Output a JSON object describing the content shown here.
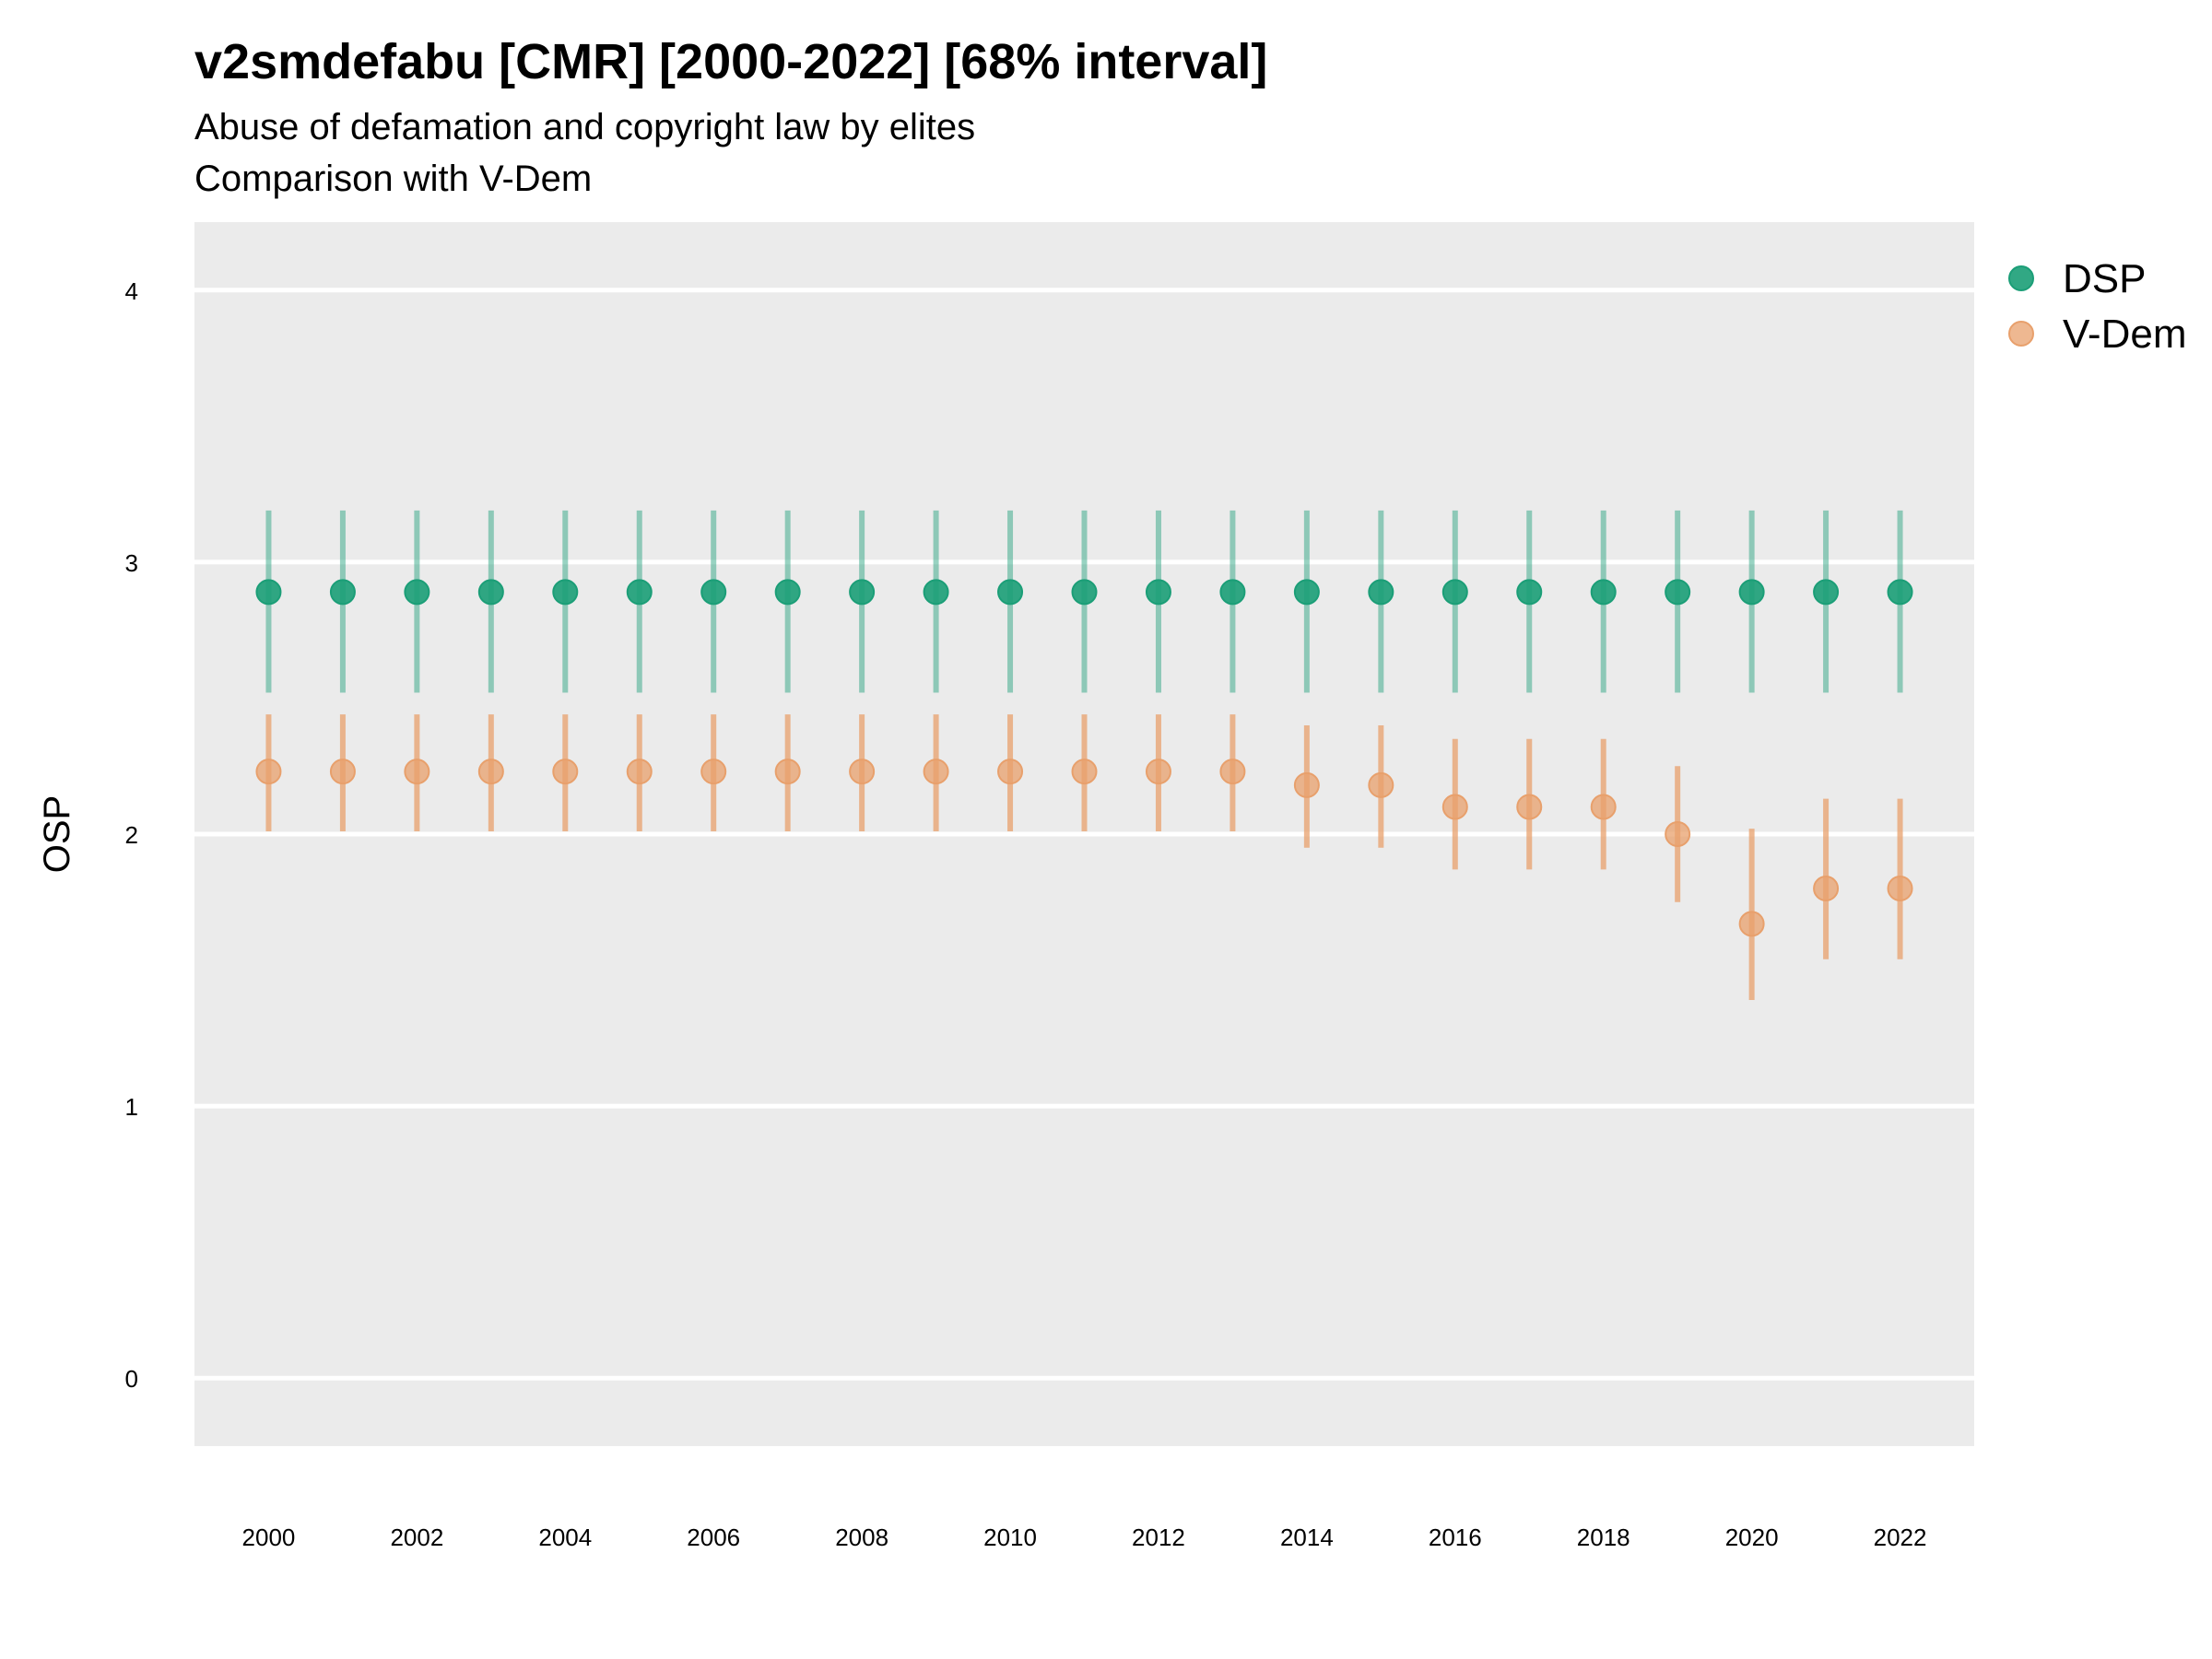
{
  "chart_data": {
    "type": "scatter",
    "title": "v2smdefabu [CMR] [2000-2022] [68% interval]",
    "subtitle_lines": [
      "Abuse of defamation and copyright law by elites",
      "Comparison with V-Dem"
    ],
    "xlabel": "",
    "ylabel": "OSP",
    "ylim": [
      -0.25,
      4.25
    ],
    "y_ticks": [
      "0",
      "1",
      "2",
      "3",
      "4"
    ],
    "x_ticks": [
      "2000",
      "2002",
      "2004",
      "2006",
      "2008",
      "2010",
      "2012",
      "2014",
      "2016",
      "2018",
      "2020",
      "2022"
    ],
    "grid": true,
    "legend_position": "right",
    "x": [
      2000,
      2001,
      2002,
      2003,
      2004,
      2005,
      2006,
      2007,
      2008,
      2009,
      2010,
      2011,
      2012,
      2013,
      2014,
      2015,
      2016,
      2017,
      2018,
      2019,
      2020,
      2021,
      2022
    ],
    "series": [
      {
        "name": "DSP",
        "color": "#1b9e77",
        "values": [
          2.89,
          2.89,
          2.89,
          2.89,
          2.89,
          2.89,
          2.89,
          2.89,
          2.89,
          2.89,
          2.89,
          2.89,
          2.89,
          2.89,
          2.89,
          2.89,
          2.89,
          2.89,
          2.89,
          2.89,
          2.89,
          2.89,
          2.89
        ],
        "lower": [
          2.52,
          2.52,
          2.52,
          2.52,
          2.52,
          2.52,
          2.52,
          2.52,
          2.52,
          2.52,
          2.52,
          2.52,
          2.52,
          2.52,
          2.52,
          2.52,
          2.52,
          2.52,
          2.52,
          2.52,
          2.52,
          2.52,
          2.52
        ],
        "upper": [
          3.19,
          3.19,
          3.19,
          3.19,
          3.19,
          3.19,
          3.19,
          3.19,
          3.19,
          3.19,
          3.19,
          3.19,
          3.19,
          3.19,
          3.19,
          3.19,
          3.19,
          3.19,
          3.19,
          3.19,
          3.19,
          3.19,
          3.19
        ]
      },
      {
        "name": "V-Dem",
        "color": "#e8a06c",
        "values": [
          2.23,
          2.23,
          2.23,
          2.23,
          2.23,
          2.23,
          2.23,
          2.23,
          2.23,
          2.23,
          2.23,
          2.23,
          2.23,
          2.23,
          2.18,
          2.18,
          2.1,
          2.1,
          2.1,
          2.0,
          1.67,
          1.8,
          1.8
        ],
        "lower": [
          2.01,
          2.01,
          2.01,
          2.01,
          2.01,
          2.01,
          2.01,
          2.01,
          2.01,
          2.01,
          2.01,
          2.01,
          2.01,
          2.01,
          1.95,
          1.95,
          1.87,
          1.87,
          1.87,
          1.75,
          1.39,
          1.54,
          1.54
        ],
        "upper": [
          2.44,
          2.44,
          2.44,
          2.44,
          2.44,
          2.44,
          2.44,
          2.44,
          2.44,
          2.44,
          2.44,
          2.44,
          2.44,
          2.44,
          2.4,
          2.4,
          2.35,
          2.35,
          2.35,
          2.25,
          2.02,
          2.13,
          2.13
        ]
      }
    ]
  },
  "colors": {
    "panel_background": "#ebebeb",
    "grid": "#ffffff",
    "dsp": "#1b9e77",
    "vdem": "#e8a06c"
  }
}
